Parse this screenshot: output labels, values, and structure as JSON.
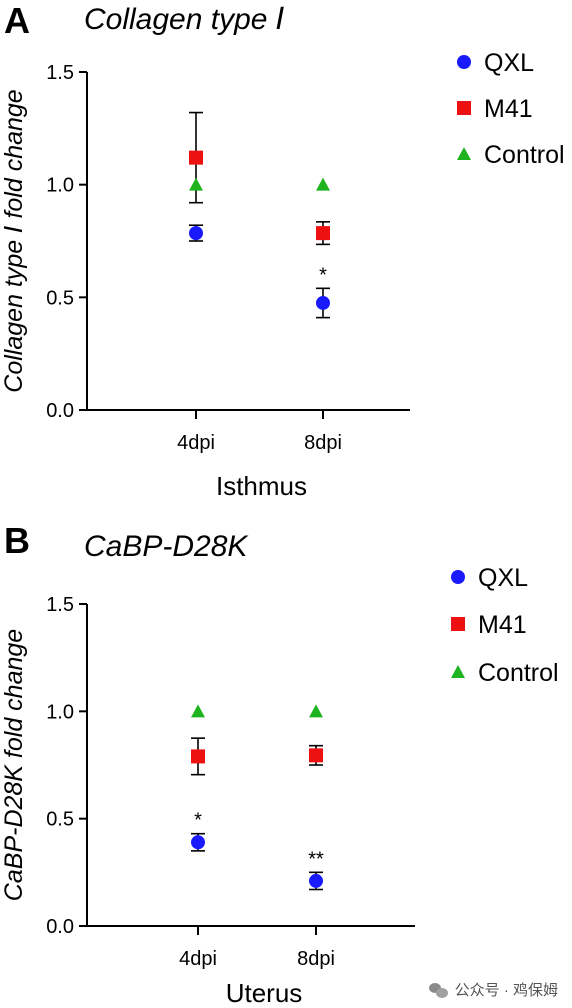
{
  "watermark": {
    "text": "公众号 · 鸡保姆",
    "icon": "wechat-icon"
  },
  "chart_data": [
    {
      "panel_letter": "A",
      "type": "scatter",
      "title": "Collagen type Ⅰ",
      "xlabel": "Isthmus",
      "ylabel": "Collagen type Ⅰ fold change",
      "categories": [
        "4dpi",
        "8dpi"
      ],
      "ylim": [
        0,
        1.5
      ],
      "yticks": [
        "0.0",
        "0.5",
        "1.0",
        "1.5"
      ],
      "grid": false,
      "legend_position": "top-right",
      "series": [
        {
          "name": "QXL",
          "marker": "circle",
          "color": "#1a1aff",
          "values": [
            0.785,
            0.475
          ],
          "errors": [
            0.035,
            0.065
          ],
          "annotations": [
            "",
            "*"
          ]
        },
        {
          "name": "M41",
          "marker": "square",
          "color": "#ee1111",
          "values": [
            1.12,
            0.785
          ],
          "errors": [
            0.2,
            0.05
          ],
          "annotations": [
            "",
            ""
          ]
        },
        {
          "name": "Control",
          "marker": "triangle",
          "color": "#1fb41f",
          "values": [
            1.0,
            1.0
          ],
          "errors": [
            0,
            0
          ],
          "annotations": [
            "",
            ""
          ]
        }
      ]
    },
    {
      "panel_letter": "B",
      "type": "scatter",
      "title": "CaBP-D28K",
      "xlabel": "Uterus",
      "ylabel": "CaBP-D28K fold change",
      "categories": [
        "4dpi",
        "8dpi"
      ],
      "ylim": [
        0,
        1.5
      ],
      "yticks": [
        "0.0",
        "0.5",
        "1.0",
        "1.5"
      ],
      "grid": false,
      "legend_position": "top-right",
      "series": [
        {
          "name": "QXL",
          "marker": "circle",
          "color": "#1a1aff",
          "values": [
            0.39,
            0.21
          ],
          "errors": [
            0.04,
            0.04
          ],
          "annotations": [
            "*",
            "**"
          ]
        },
        {
          "name": "M41",
          "marker": "square",
          "color": "#ee1111",
          "values": [
            0.79,
            0.795
          ],
          "errors": [
            0.085,
            0.045
          ],
          "annotations": [
            "",
            ""
          ]
        },
        {
          "name": "Control",
          "marker": "triangle",
          "color": "#1fb41f",
          "values": [
            1.0,
            1.0
          ],
          "errors": [
            0,
            0
          ],
          "annotations": [
            "",
            ""
          ]
        }
      ]
    }
  ]
}
